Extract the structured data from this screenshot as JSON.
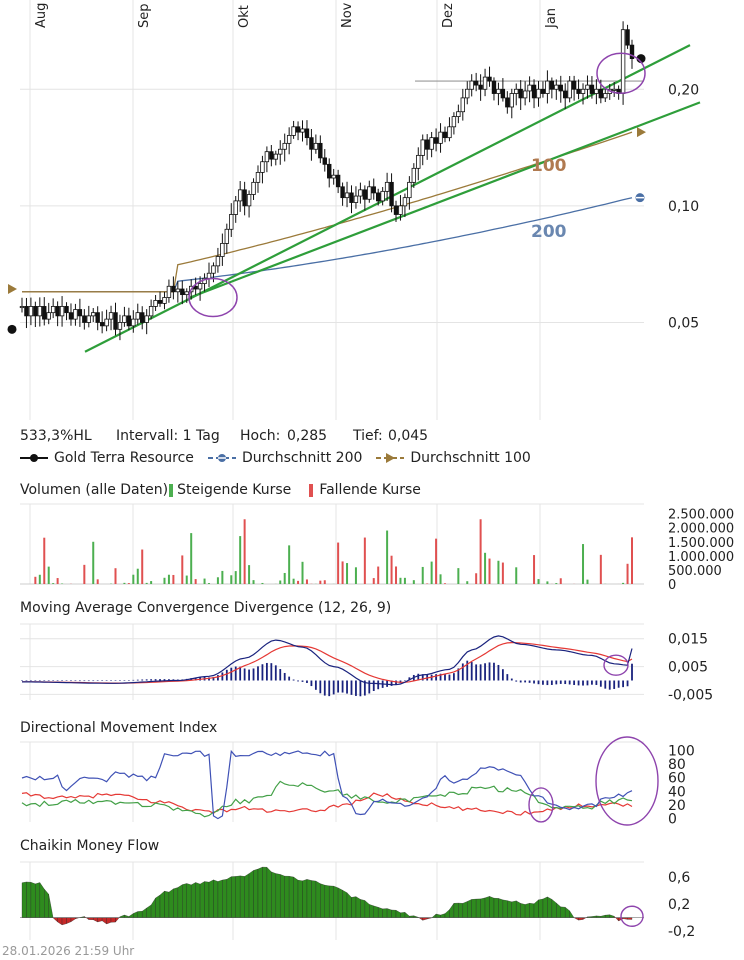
{
  "chart_data": {
    "price": {
      "type": "candlestick",
      "months": [
        "Aug",
        "Sep",
        "Okt",
        "Nov",
        "Dez",
        "Jan"
      ],
      "y_ticks": [
        "0,20",
        "0,10",
        "0,05"
      ],
      "y_tick_values": [
        0.2,
        0.1,
        0.05
      ],
      "ylim": [
        0.028,
        0.34
      ],
      "scale": "log",
      "annotation_100": "100",
      "annotation_200": "200",
      "close": [
        0.055,
        0.052,
        0.055,
        0.052,
        0.055,
        0.051,
        0.053,
        0.055,
        0.052,
        0.055,
        0.053,
        0.051,
        0.054,
        0.052,
        0.05,
        0.052,
        0.053,
        0.05,
        0.049,
        0.051,
        0.053,
        0.048,
        0.05,
        0.052,
        0.049,
        0.051,
        0.053,
        0.05,
        0.052,
        0.055,
        0.057,
        0.056,
        0.058,
        0.062,
        0.06,
        0.061,
        0.059,
        0.06,
        0.062,
        0.061,
        0.063,
        0.065,
        0.067,
        0.07,
        0.074,
        0.08,
        0.087,
        0.095,
        0.103,
        0.11,
        0.1,
        0.107,
        0.115,
        0.122,
        0.13,
        0.138,
        0.132,
        0.136,
        0.14,
        0.145,
        0.152,
        0.16,
        0.155,
        0.158,
        0.15,
        0.14,
        0.145,
        0.133,
        0.128,
        0.118,
        0.12,
        0.112,
        0.105,
        0.108,
        0.102,
        0.106,
        0.11,
        0.104,
        0.112,
        0.108,
        0.103,
        0.109,
        0.115,
        0.1,
        0.095,
        0.1,
        0.105,
        0.115,
        0.125,
        0.135,
        0.148,
        0.14,
        0.15,
        0.145,
        0.155,
        0.15,
        0.16,
        0.17,
        0.175,
        0.19,
        0.2,
        0.21,
        0.205,
        0.2,
        0.215,
        0.21,
        0.195,
        0.2,
        0.19,
        0.18,
        0.195,
        0.2,
        0.19,
        0.198,
        0.205,
        0.19,
        0.2,
        0.195,
        0.21,
        0.2,
        0.205,
        0.198,
        0.19,
        0.21,
        0.2,
        0.195,
        0.2,
        0.205,
        0.195,
        0.2,
        0.19,
        0.195,
        0.2,
        0.2,
        0.195,
        0.285,
        0.26,
        0.24
      ],
      "sma100_start": 0.06,
      "sma100_end": 0.155,
      "sma200_start": 0.06,
      "sma200_end": 0.105
    },
    "info": {
      "change": "533,3%HL",
      "interval": "Intervall: 1 Tag",
      "high_label": "Hoch:",
      "high": "0,285",
      "low_label": "Tief:",
      "low": "0,045"
    },
    "legend": [
      {
        "name": "Gold Terra Resource",
        "color": "#111111"
      },
      {
        "name": "Durchschnitt 200",
        "color": "#4a6fa5"
      },
      {
        "name": "Durchschnitt 100",
        "color": "#9b7a3a"
      }
    ],
    "volume": {
      "title": "Volumen (alle Daten)",
      "rising_label": "Steigende Kurse",
      "falling_label": "Fallende Kurse",
      "rising_color": "#4caf50",
      "falling_color": "#e05050",
      "y_ticks": [
        "2.500.000",
        "2.000.000",
        "1.500.000",
        "1.000.000",
        "500.000",
        "0"
      ],
      "y_tick_values": [
        2500000,
        2000000,
        1500000,
        1000000,
        500000,
        0
      ],
      "ylim": [
        0,
        2700000
      ]
    },
    "macd": {
      "title": "Moving Average Convergence Divergence (12, 26, 9)",
      "y_ticks": [
        "0,015",
        "0,005",
        "-0,005"
      ],
      "y_tick_values": [
        0.015,
        0.005,
        -0.005
      ],
      "ylim": [
        -0.007,
        0.021
      ],
      "macd_color": "#1a237e",
      "signal_color": "#e53935",
      "hist_color": "#1a237e"
    },
    "dmi": {
      "title": "Directional Movement Index",
      "y_ticks": [
        "100",
        "80",
        "60",
        "40",
        "20",
        "0"
      ],
      "y_tick_values": [
        100,
        80,
        60,
        40,
        20,
        0
      ],
      "ylim": [
        -5,
        115
      ],
      "adx_color": "#3f51b5",
      "plus_color": "#43a047",
      "minus_color": "#e53935"
    },
    "cmf": {
      "title": "Chaikin Money Flow",
      "y_ticks": [
        "0,6",
        "0,2",
        "-0,2"
      ],
      "y_tick_values": [
        0.6,
        0.2,
        -0.2
      ],
      "ylim": [
        -0.33,
        0.82
      ],
      "pos_color": "#2e8b1e",
      "neg_color": "#c62828"
    }
  },
  "footer": "28.01.2026 21:59 Uhr"
}
